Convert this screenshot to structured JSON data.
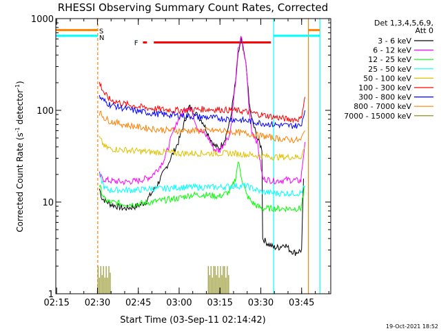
{
  "chart_data": {
    "type": "line",
    "title": "RHESSI Observing Summary Count Rates, Corrected",
    "xlabel": "Start Time (03-Sep-11 02:14:42)",
    "ylabel": "Corrected Count Rate (s⁻¹ detector⁻¹)",
    "ylabel_parts": [
      "Corrected Count Rate (s",
      "-1",
      " detector",
      "-1",
      ")"
    ],
    "yscale": "log",
    "ylim": [
      1,
      1000
    ],
    "xlim_minutes": [
      0,
      101
    ],
    "x_unit": "minutes since 02:14:42",
    "xticks": [
      {
        "label": "02:15",
        "min": 0.3
      },
      {
        "label": "02:30",
        "min": 15.3
      },
      {
        "label": "02:45",
        "min": 30.3
      },
      {
        "label": "03:00",
        "min": 45.3
      },
      {
        "label": "03:15",
        "min": 60.3
      },
      {
        "label": "03:30",
        "min": 75.3
      },
      {
        "label": "03:45",
        "min": 90.3
      }
    ],
    "yticks": [
      {
        "label": "1",
        "value": 1
      },
      {
        "label": "10",
        "value": 10
      },
      {
        "label": "100",
        "value": 100
      },
      {
        "label": "1000",
        "value": 1000
      }
    ],
    "legend_title": [
      "Det 1,3,4,5,6,9,",
      "Att 0"
    ],
    "legend_position": "right",
    "flags": [
      {
        "label": "S",
        "color": "#ff8000"
      },
      {
        "label": "N",
        "color": "#00ffff"
      },
      {
        "label": "F",
        "color": "#ff0000"
      }
    ],
    "series": [
      {
        "name": "3 - 6 keV",
        "color": "#000000",
        "x": [
          16,
          17,
          20,
          25,
          30,
          33,
          37,
          40,
          45,
          47,
          49,
          51,
          54,
          56,
          58,
          60,
          62,
          64,
          66,
          67,
          68,
          70,
          71,
          72,
          74,
          75.7,
          76,
          78,
          80,
          82,
          84,
          86,
          88,
          90.3,
          91
        ],
        "y": [
          14,
          11,
          9.5,
          8.5,
          9,
          10,
          15,
          22,
          45,
          70,
          110,
          95,
          75,
          55,
          42,
          38,
          48,
          75,
          200,
          400,
          600,
          300,
          120,
          80,
          50,
          38,
          4,
          3.5,
          3.2,
          3.2,
          3.5,
          3.0,
          2.8,
          3,
          18
        ]
      },
      {
        "name": "6 - 12 keV",
        "color": "#ff00ff",
        "x": [
          16,
          17,
          20,
          25,
          30,
          33,
          35,
          38,
          40,
          44,
          48,
          50,
          52,
          56,
          58,
          60,
          64,
          66,
          67,
          68,
          70,
          71,
          72,
          74,
          76,
          80,
          85,
          90,
          91.5
        ],
        "y": [
          20,
          18,
          17,
          16.5,
          17,
          18,
          19,
          24,
          30,
          70,
          110,
          100,
          65,
          50,
          38,
          36,
          55,
          200,
          450,
          650,
          300,
          100,
          60,
          45,
          18,
          17,
          17.5,
          17,
          45
        ]
      },
      {
        "name": "12 - 25 keV",
        "color": "#00ff00",
        "x": [
          16,
          18,
          20,
          25,
          30,
          35,
          40,
          45,
          50,
          55,
          60,
          64,
          66,
          67,
          68,
          70,
          72,
          74,
          76,
          80,
          85,
          90,
          91.5
        ],
        "y": [
          15,
          10.5,
          10,
          9.5,
          9.5,
          10,
          10.5,
          11,
          12,
          12,
          11.5,
          13,
          18,
          28,
          20,
          12,
          10,
          9,
          8.5,
          8.5,
          8.5,
          8.5,
          15
        ]
      },
      {
        "name": "25 - 50 keV",
        "color": "#00ffff",
        "x": [
          16,
          18,
          20,
          25,
          30,
          35,
          40,
          45,
          50,
          55,
          60,
          65,
          70,
          75,
          80,
          85,
          90,
          91.5
        ],
        "y": [
          20,
          14,
          13.5,
          13.5,
          13.5,
          14,
          14,
          14.5,
          14.5,
          14.5,
          14.5,
          15,
          15,
          13,
          12.5,
          12.5,
          12.5,
          15
        ]
      },
      {
        "name": "50 - 100 keV",
        "color": "#e0c000",
        "x": [
          16,
          18,
          20,
          25,
          30,
          35,
          40,
          45,
          50,
          55,
          60,
          65,
          70,
          75,
          80,
          85,
          90,
          91.5
        ],
        "y": [
          50,
          40,
          38,
          37,
          36,
          35,
          35,
          34,
          34,
          34,
          34,
          34,
          33,
          32,
          31,
          31,
          31,
          40
        ]
      },
      {
        "name": "100 - 300 keV",
        "color": "#ff0000",
        "x": [
          16,
          18,
          20,
          25,
          30,
          35,
          40,
          45,
          50,
          55,
          60,
          65,
          70,
          75,
          80,
          85,
          90,
          91.5
        ],
        "y": [
          200,
          150,
          130,
          118,
          110,
          105,
          102,
          100,
          102,
          103,
          102,
          100,
          97,
          90,
          85,
          80,
          80,
          140
        ]
      },
      {
        "name": "300 - 800 keV",
        "color": "#0000ff",
        "x": [
          16,
          18,
          20,
          25,
          30,
          35,
          40,
          45,
          50,
          55,
          60,
          65,
          70,
          75,
          80,
          85,
          90,
          91.5
        ],
        "y": [
          140,
          125,
          115,
          105,
          98,
          93,
          90,
          88,
          86,
          84,
          82,
          80,
          77,
          73,
          70,
          68,
          68,
          100
        ]
      },
      {
        "name": "800 - 7000 keV",
        "color": "#ff8000",
        "x": [
          16,
          18,
          20,
          25,
          30,
          35,
          40,
          45,
          50,
          55,
          60,
          65,
          70,
          75,
          80,
          85,
          90,
          91.5
        ],
        "y": [
          95,
          82,
          76,
          70,
          66,
          63,
          61,
          60,
          60,
          60,
          60,
          58,
          56,
          53,
          50,
          48,
          47,
          60
        ]
      },
      {
        "name": "7000 - 15000 keV",
        "color": "#808000",
        "style": "bars",
        "x": [
          15.5,
          16,
          16.5,
          17,
          17.5,
          18,
          18.5,
          19,
          19.5,
          20,
          56,
          56.5,
          57,
          57.5,
          58,
          58.5,
          59,
          59.5,
          60,
          60.5,
          61,
          61.5,
          62,
          62.5,
          63,
          63.5
        ],
        "y": [
          2.0,
          1.5,
          2.0,
          1.6,
          2.0,
          1.5,
          2.0,
          1.5,
          2.0,
          1.7,
          2.0,
          1.6,
          2.0,
          1.5,
          2.0,
          2.0,
          1.6,
          2.0,
          1.5,
          2.0,
          1.6,
          2.0,
          2.0,
          1.5,
          2.0,
          1.6
        ]
      }
    ],
    "flag_bars": [
      {
        "name": "S",
        "color": "#ff8000",
        "x0": 0,
        "x1": 15.4,
        "y": 750
      },
      {
        "name": "S",
        "color": "#ff8000",
        "x0": 92.8,
        "x1": 97,
        "y": 750
      },
      {
        "name": "N",
        "color": "#00ffff",
        "x0": 0,
        "x1": 15.4,
        "y": 650
      },
      {
        "name": "N",
        "color": "#00ffff",
        "x0": 80,
        "x1": 97,
        "y": 650
      },
      {
        "name": "F",
        "color": "#ff0000",
        "x0": 36,
        "x1": 79,
        "y": 550
      },
      {
        "name": "F",
        "color": "#ff0000",
        "x0": 32,
        "x1": 33.5,
        "y": 550
      }
    ],
    "vertical_markers": [
      {
        "x": 15.4,
        "color": "#ff8000",
        "dash": true
      },
      {
        "x": 80,
        "color": "#00ffff",
        "dash": false
      },
      {
        "x": 92.8,
        "color": "#ff8000",
        "dash": false
      },
      {
        "x": 97,
        "color": "#00ffff",
        "dash": false
      }
    ]
  },
  "footer_date": "19-Oct-2021 18:52"
}
